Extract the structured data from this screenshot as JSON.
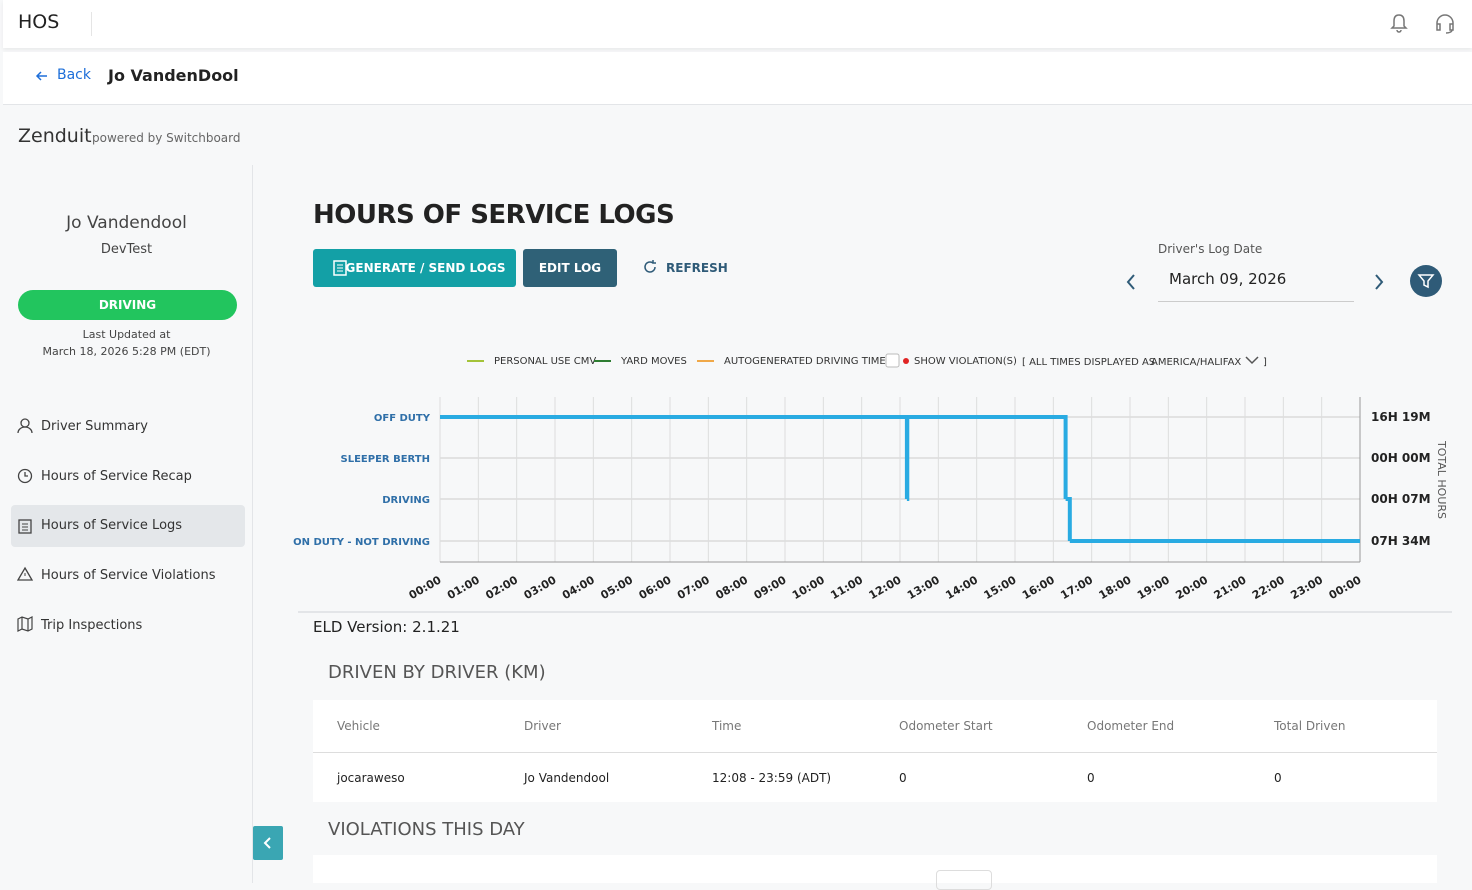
{
  "header": {
    "app": "HOS"
  },
  "subheader": {
    "back": "Back",
    "driver": "Jo VandenDool"
  },
  "brand": {
    "name": "Zenduit",
    "powered": "powered by Switchboard"
  },
  "sidebar": {
    "driver_name": "Jo Vandendool",
    "group": "DevTest",
    "status": "DRIVING",
    "updated_label": "Last Updated at",
    "updated": "March 18, 2026 5:28 PM (EDT)",
    "nav": [
      "Driver Summary",
      "Hours of Service Recap",
      "Hours of Service Logs",
      "Hours of Service Violations",
      "Trip Inspections"
    ]
  },
  "page": {
    "title": "HOURS OF SERVICE LOGS",
    "generate": "GENERATE / SEND LOGS",
    "edit": "EDIT LOG",
    "refresh": "REFRESH",
    "date_label": "Driver's Log Date",
    "date": "March 09, 2026",
    "eld": "ELD Version: 2.1.21"
  },
  "chart_data": {
    "type": "step",
    "legend": [
      {
        "name": "PERSONAL USE CMV",
        "color": "#a4c339"
      },
      {
        "name": "YARD MOVES",
        "color": "#2e7d32"
      },
      {
        "name": "AUTOGENERATED DRIVING TIME",
        "color": "#f0a848"
      }
    ],
    "violations_label": "SHOW VIOLATION(S)",
    "timezone_prefix": "[ ALL TIMES DISPLAYED AS",
    "timezone": "AMERICA/HALIFAX",
    "timezone_suffix": "]",
    "y2_title": "TOTAL HOURS",
    "statuses": [
      "OFF DUTY",
      "SLEEPER BERTH",
      "DRIVING",
      "ON DUTY - NOT DRIVING"
    ],
    "totals": [
      "16H 19M",
      "00H 00M",
      "00H 07M",
      "07H 34M"
    ],
    "xlim": [
      0,
      24
    ],
    "xticks": [
      {
        "value": 0,
        "label": "00:00"
      },
      {
        "value": 1,
        "label": "01:00"
      },
      {
        "value": 2,
        "label": "02:00"
      },
      {
        "value": 3,
        "label": "03:00"
      },
      {
        "value": 4,
        "label": "04:00"
      },
      {
        "value": 5,
        "label": "05:00"
      },
      {
        "value": 6,
        "label": "06:00"
      },
      {
        "value": 7,
        "label": "07:00"
      },
      {
        "value": 8,
        "label": "08:00"
      },
      {
        "value": 9,
        "label": "09:00"
      },
      {
        "value": 10,
        "label": "10:00"
      },
      {
        "value": 11,
        "label": "11:00"
      },
      {
        "value": 12,
        "label": "12:00"
      },
      {
        "value": 13,
        "label": "13:00"
      },
      {
        "value": 14,
        "label": "14:00"
      },
      {
        "value": 15,
        "label": "15:00"
      },
      {
        "value": 16,
        "label": "16:00"
      },
      {
        "value": 17,
        "label": "17:00"
      },
      {
        "value": 18,
        "label": "18:00"
      },
      {
        "value": 19,
        "label": "19:00"
      },
      {
        "value": 20,
        "label": "20:00"
      },
      {
        "value": 21,
        "label": "21:00"
      },
      {
        "value": 22,
        "label": "22:00"
      },
      {
        "value": 23,
        "label": "23:00"
      },
      {
        "value": 24,
        "label": "00:00"
      }
    ],
    "x": [
      0,
      12.18,
      12.19,
      16.32,
      16.43,
      24
    ],
    "values": [
      "OFF DUTY",
      "DRIVING",
      "OFF DUTY",
      "DRIVING",
      "ON DUTY - NOT DRIVING",
      "ON DUTY - NOT DRIVING"
    ],
    "color": "#29abe2",
    "grid": true
  },
  "driven": {
    "title": "DRIVEN BY DRIVER (KM)",
    "columns": [
      "Vehicle",
      "Driver",
      "Time",
      "Odometer Start",
      "Odometer End",
      "Total Driven"
    ],
    "rows": [
      [
        "jocaraweso",
        "Jo Vandendool",
        "12:08 - 23:59 (ADT)",
        "0",
        "0",
        "0"
      ]
    ]
  },
  "violations": {
    "title": "VIOLATIONS THIS DAY"
  }
}
